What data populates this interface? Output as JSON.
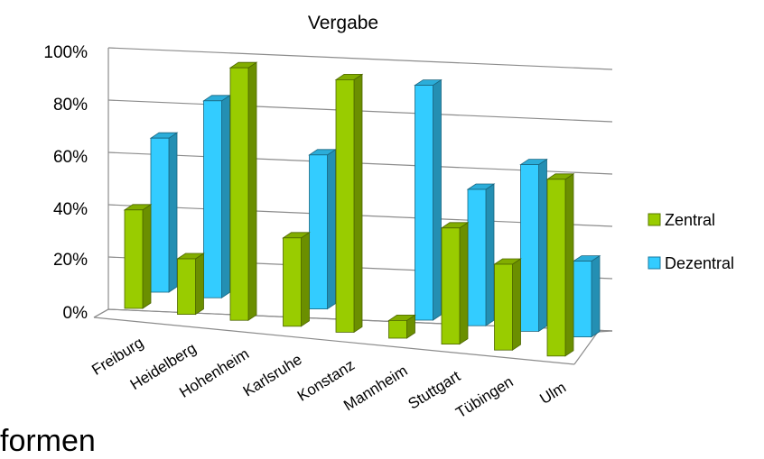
{
  "chart_data": {
    "type": "bar",
    "title": "Vergabe",
    "categories": [
      "Freiburg",
      "Heidelberg",
      "Hohenheim",
      "Karlsruhe",
      "Konstanz",
      "Mannheim",
      "Stuttgart",
      "Tübingen",
      "Ulm"
    ],
    "series": [
      {
        "name": "Zentral",
        "values": [
          39,
          22,
          100,
          35,
          100,
          7,
          46,
          34,
          70
        ],
        "color": "#99cc00"
      },
      {
        "name": "Dezentral",
        "values": [
          61,
          78,
          0,
          61,
          0,
          93,
          54,
          66,
          30
        ],
        "color": "#33ccff"
      }
    ],
    "ylim": [
      0,
      100
    ],
    "y_ticks": [
      "0%",
      "20%",
      "40%",
      "60%",
      "80%",
      "100%"
    ],
    "grid": true,
    "legend_position": "right",
    "three_d": true
  },
  "footer_fragment": "formen"
}
